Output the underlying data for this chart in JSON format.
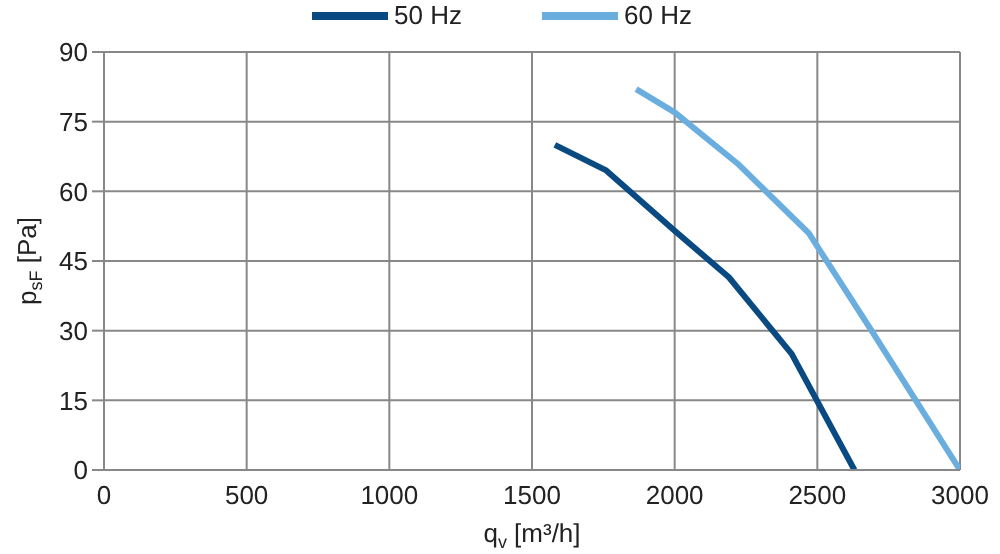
{
  "chart_data": {
    "type": "line",
    "xlabel": "q$_{v}$ [m³/h]",
    "ylabel": "p$_{sF}$ [Pa]",
    "xlim": [
      0,
      3000
    ],
    "xticks": [
      0,
      500,
      1000,
      1500,
      2000,
      2500,
      3000
    ],
    "ylim": [
      0,
      90
    ],
    "yticks": [
      0,
      15,
      30,
      45,
      60,
      75,
      90
    ],
    "grid": true,
    "legend": "top",
    "line_style": "solid",
    "series": [
      {
        "name": "50 Hz",
        "color": "#0a4a82",
        "x": [
          1580,
          1760,
          2000,
          2190,
          2410,
          2630
        ],
        "values": [
          70,
          64.5,
          51.5,
          41.5,
          25,
          0
        ]
      },
      {
        "name": "60 Hz",
        "color": "#6aaee0",
        "x": [
          1865,
          2000,
          2220,
          2470,
          2690,
          3000
        ],
        "values": [
          82,
          77,
          66,
          51,
          30,
          0
        ]
      }
    ]
  }
}
